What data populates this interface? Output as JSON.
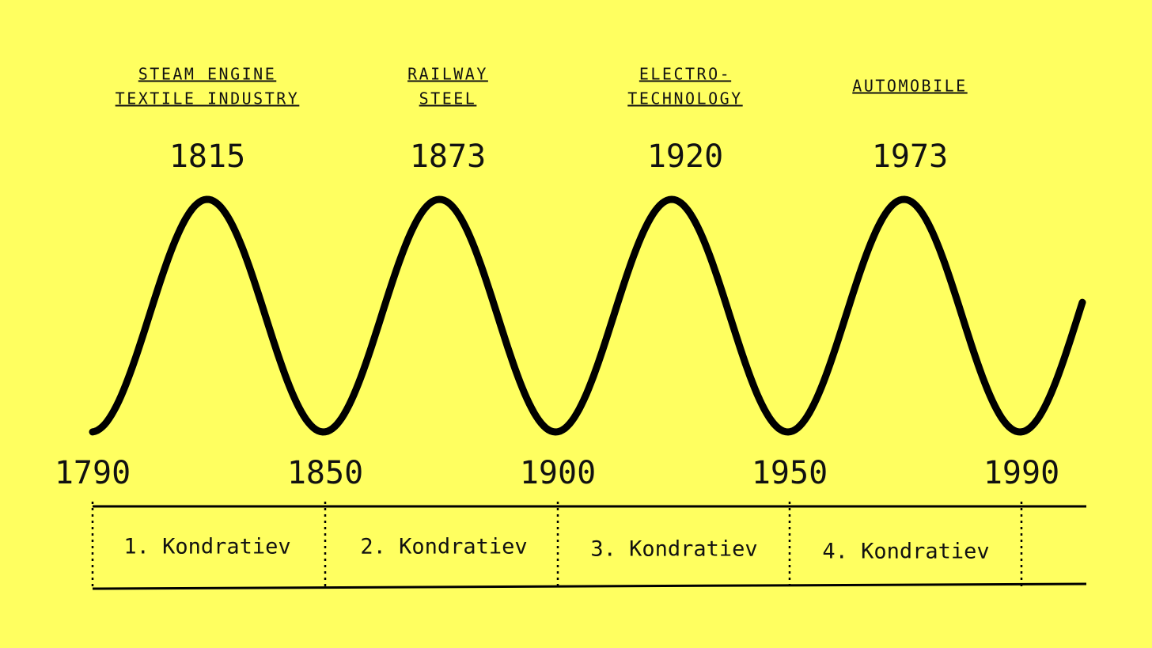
{
  "peaks": [
    {
      "innovation": [
        "STEAM ENGINE",
        "TEXTILE INDUSTRY"
      ],
      "year": "1815"
    },
    {
      "innovation": [
        "RAILWAY",
        "STEEL"
      ],
      "year": "1873"
    },
    {
      "innovation": [
        "ELECTRO-",
        "TECHNOLOGY"
      ],
      "year": "1920"
    },
    {
      "innovation": [
        "AUTOMOBILE"
      ],
      "year": "1973"
    }
  ],
  "troughs": [
    "1790",
    "1850",
    "1900",
    "1950",
    "1990"
  ],
  "cycles": [
    "1. Kondratiev",
    "2. Kondratiev",
    "3. Kondratiev",
    "4. Kondratiev"
  ]
}
